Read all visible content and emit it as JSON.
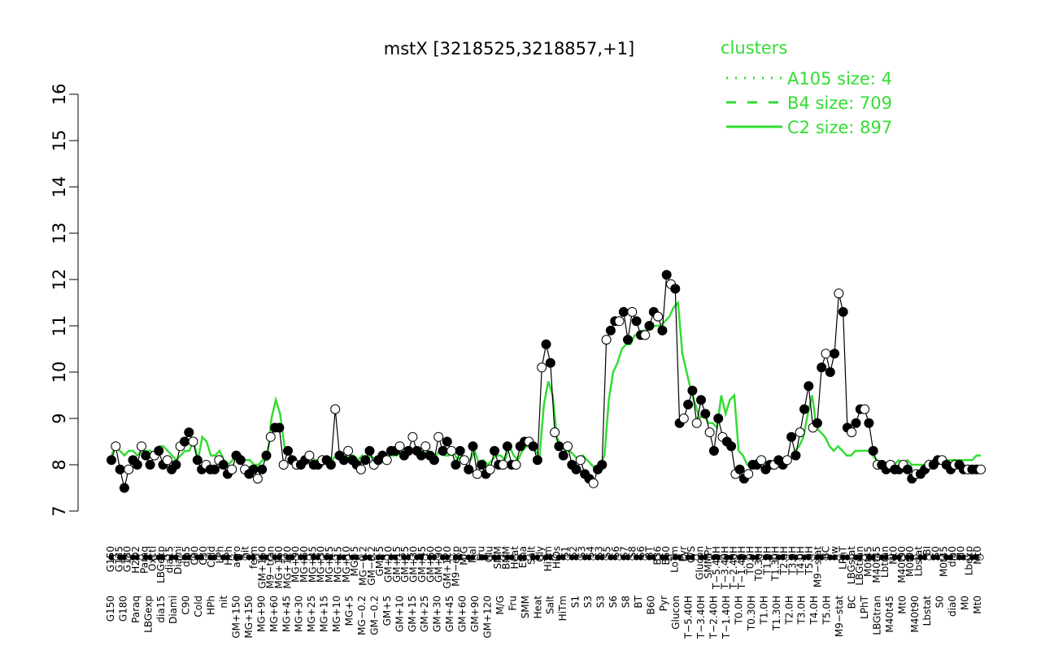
{
  "chart_data": {
    "type": "line",
    "title": "mstX [3218525,3218857,+1]",
    "ylim": [
      7,
      16
    ],
    "yticks": [
      7,
      8,
      9,
      10,
      11,
      12,
      13,
      14,
      15,
      16
    ],
    "colors": {
      "cluster_line": "#33dd33",
      "data_line": "#000000",
      "point_fill_filled": "#000000",
      "point_fill_open": "#ffffff"
    },
    "legend": {
      "title": "clusters",
      "placement": "top-right",
      "entries": [
        {
          "label": "A105 size: 4",
          "style": "dotted"
        },
        {
          "label": "B4 size: 709",
          "style": "dashed"
        },
        {
          "label": "C2 size: 897",
          "style": "solid"
        }
      ]
    },
    "x_labels_top": [
      "G150",
      "G135",
      "G180",
      "H2O2",
      "Paraq",
      "Oxctl",
      "LBGexp",
      "dia15",
      "Diami",
      "dia5",
      "C90",
      "C30",
      "Cold",
      "LPh",
      "HPh",
      "aero",
      "nit",
      "ferm",
      "GM+150",
      "M9−tran",
      "MG+150",
      "MG+120",
      "MG+90",
      "MG+60",
      "MG+45",
      "MG+30",
      "MG+25",
      "MG+15",
      "MG+10",
      "MG+5",
      "MG−0.2",
      "GM−0.2",
      "GM+5",
      "GM+10",
      "GM+15",
      "GM+25",
      "GM+30",
      "GM+45",
      "GM+60",
      "GM+90",
      "GM+120",
      "M9−exp",
      "M/G",
      "Mal",
      "Fru",
      "Glu",
      "SMM",
      "BMM",
      "Heat",
      "Etha",
      "Salt",
      "Gly",
      "HiTm",
      "HiOs",
      "S1",
      "S2",
      "S3",
      "S4",
      "S3",
      "S5",
      "S6",
      "S7",
      "S8",
      "S6",
      "BT",
      "B36",
      "B60",
      "LoTm",
      "Pyr",
      "G/S",
      "Glucon",
      "SMMPr",
      "T−5.40H",
      "T−3.40H",
      "T−2.40H",
      "T−1.40H",
      "T0.0H",
      "T0.30H",
      "T1.0H",
      "T1.30H",
      "T2.0H",
      "T3.0H",
      "T4.0H",
      "T5.0H",
      "M9−stat",
      "BC",
      "Sw",
      "LPhT",
      "LBGstat",
      "LBGtran",
      "M0t45",
      "M40t45",
      "Lbtran",
      "Mt0",
      "M40t90",
      "M0t90",
      "Lbstat",
      "BI",
      "S0",
      "M0t45",
      "dia0",
      "M0",
      "Lbexp",
      "Mt0"
    ],
    "x_labels_bottom": [
      "G150",
      "G180",
      "Paraq",
      "LBGexp",
      "dia15",
      "Diami",
      "C90",
      "Cold",
      "HPh",
      "nit",
      "GM+150",
      "MG+150",
      "MG+90",
      "MG+60",
      "MG+45",
      "MG+30",
      "MG+25",
      "MG+15",
      "MG+10",
      "MG+5",
      "MG−0.2",
      "GM−0.2",
      "GM+5",
      "GM+10",
      "GM+15",
      "GM+25",
      "GM+30",
      "GM+45",
      "GM+60",
      "GM+90",
      "GM+120",
      "M/G",
      "Fru",
      "SMM",
      "Heat",
      "Salt",
      "HiTm",
      "S1",
      "S3",
      "S3",
      "S6",
      "S8",
      "BT",
      "B60",
      "Pyr",
      "Glucon",
      "T−5.40H",
      "T−3.40H",
      "T−2.40H",
      "T−1.40H",
      "T0.0H",
      "T0.30H",
      "T1.0H",
      "T1.30H",
      "T2.0H",
      "T3.0H",
      "T4.0H",
      "T5.0H",
      "M9−stat",
      "BC",
      "LPhT",
      "LBGtran",
      "M40t45",
      "Mt0",
      "M40t90",
      "Lbstat",
      "S0",
      "dia0",
      "M0",
      "Mt0"
    ],
    "series": [
      {
        "name": "data",
        "values": [
          8.1,
          8.4,
          7.9,
          7.5,
          7.9,
          8.1,
          8.0,
          8.4,
          8.2,
          8.0,
          8.2,
          8.3,
          8.0,
          8.1,
          7.9,
          8.0,
          8.4,
          8.5,
          8.7,
          8.5,
          8.1,
          7.9,
          8.0,
          7.9,
          7.9,
          8.1,
          8.0,
          7.8,
          7.9,
          8.2,
          8.1,
          7.9,
          7.8,
          7.9,
          7.7,
          7.9,
          8.2,
          8.6,
          8.8,
          8.8,
          8.0,
          8.3,
          8.1,
          8.0,
          8.0,
          8.1,
          8.2,
          8.0,
          8.0,
          8.1,
          8.1,
          8.0,
          9.2,
          8.2,
          8.1,
          8.3,
          8.1,
          8.0,
          7.9,
          8.1,
          8.3,
          8.0,
          8.1,
          8.2,
          8.1,
          8.3,
          8.3,
          8.4,
          8.2,
          8.3,
          8.6,
          8.3,
          8.2,
          8.4,
          8.2,
          8.1,
          8.6,
          8.3,
          8.5,
          8.3,
          8.0,
          8.3,
          8.1,
          7.9,
          8.4,
          7.8,
          8.0,
          7.8,
          7.9,
          8.3,
          8.0,
          8.0,
          8.4,
          8.0,
          8.0,
          8.4,
          8.5,
          8.5,
          8.4,
          8.1,
          10.1,
          10.6,
          10.2,
          8.7,
          8.4,
          8.2,
          8.4,
          8.0,
          7.9,
          8.1,
          7.8,
          7.7,
          7.6,
          7.9,
          8.0,
          10.7,
          10.9,
          11.1,
          11.1,
          11.3,
          10.7,
          11.3,
          11.1,
          10.8,
          10.8,
          11.0,
          11.3,
          11.2,
          10.9,
          12.1,
          11.9,
          11.8,
          8.9,
          9.0,
          9.3,
          9.6,
          8.9,
          9.4,
          9.1,
          8.7,
          8.3,
          9.0,
          8.6,
          8.5,
          8.4,
          7.8,
          7.9,
          7.7,
          7.8,
          8.0,
          8.0,
          8.1,
          7.9,
          8.0,
          8.0,
          8.1,
          8.0,
          8.1,
          8.6,
          8.2,
          8.7,
          9.2,
          9.7,
          8.8,
          8.9,
          10.1,
          10.4,
          10.0,
          10.4,
          11.7,
          11.3,
          8.8,
          8.7,
          8.9,
          9.2,
          9.2,
          8.9,
          8.3,
          8.0,
          8.0,
          7.9,
          8.0,
          7.9,
          7.9,
          8.0,
          7.9,
          7.7,
          7.8,
          7.8,
          7.9,
          8.0,
          8.0,
          8.1,
          8.1,
          8.0,
          7.9,
          8.0,
          8.0,
          7.9,
          7.9,
          7.9,
          7.9,
          7.9
        ]
      },
      {
        "name": "C2 size: 897",
        "values": [
          8.2,
          8.4,
          8.3,
          8.2,
          8.3,
          8.3,
          8.2,
          8.3,
          8.3,
          8.3,
          8.2,
          8.4,
          8.4,
          8.3,
          8.2,
          8.1,
          8.2,
          8.3,
          8.3,
          8.5,
          8.1,
          8.6,
          8.5,
          8.2,
          8.2,
          8.3,
          8.1,
          8.0,
          8.1,
          8.2,
          8.2,
          8.1,
          8.1,
          8.0,
          8.0,
          8.1,
          8.1,
          9.0,
          9.4,
          9.1,
          8.4,
          8.3,
          8.1,
          8.0,
          8.0,
          8.1,
          8.2,
          8.1,
          8.1,
          8.0,
          8.1,
          8.1,
          8.2,
          8.2,
          8.1,
          8.2,
          8.2,
          8.1,
          8.2,
          8.1,
          8.2,
          8.1,
          8.1,
          8.2,
          8.2,
          8.2,
          8.2,
          8.3,
          8.2,
          8.3,
          8.3,
          8.3,
          8.2,
          8.3,
          8.2,
          8.2,
          8.3,
          8.2,
          8.2,
          8.3,
          8.1,
          8.2,
          8.1,
          8.1,
          8.3,
          8.0,
          8.1,
          8.0,
          8.1,
          8.2,
          8.2,
          8.1,
          8.4,
          8.2,
          8.1,
          8.3,
          8.4,
          8.4,
          8.3,
          8.2,
          9.3,
          9.8,
          9.5,
          8.6,
          8.4,
          8.3,
          8.3,
          8.2,
          8.1,
          8.2,
          8.1,
          8.0,
          7.9,
          8.0,
          8.2,
          9.4,
          10.0,
          10.2,
          10.5,
          10.6,
          10.6,
          10.8,
          10.8,
          10.9,
          10.9,
          11.0,
          11.0,
          11.0,
          11.1,
          11.2,
          11.4,
          11.5,
          10.4,
          10.0,
          9.6,
          9.3,
          9.0,
          9.1,
          8.9,
          8.9,
          8.8,
          9.5,
          9.1,
          9.4,
          9.5,
          8.3,
          8.2,
          8.0,
          8.0,
          8.1,
          8.1,
          8.1,
          8.0,
          8.0,
          8.0,
          8.1,
          8.0,
          8.1,
          8.3,
          8.4,
          8.6,
          9.1,
          9.5,
          8.8,
          8.7,
          8.6,
          8.4,
          8.3,
          8.4,
          8.3,
          8.2,
          8.2,
          8.3,
          8.3,
          8.3,
          8.3,
          8.2,
          8.1,
          8.0,
          8.0,
          8.0,
          8.0,
          8.1,
          8.0,
          8.1,
          8.0,
          8.0,
          8.0,
          8.0,
          8.0,
          8.1,
          8.1,
          8.1,
          8.1,
          8.1,
          8.1,
          8.1,
          8.1,
          8.1,
          8.1,
          8.2,
          8.2
        ]
      }
    ]
  }
}
